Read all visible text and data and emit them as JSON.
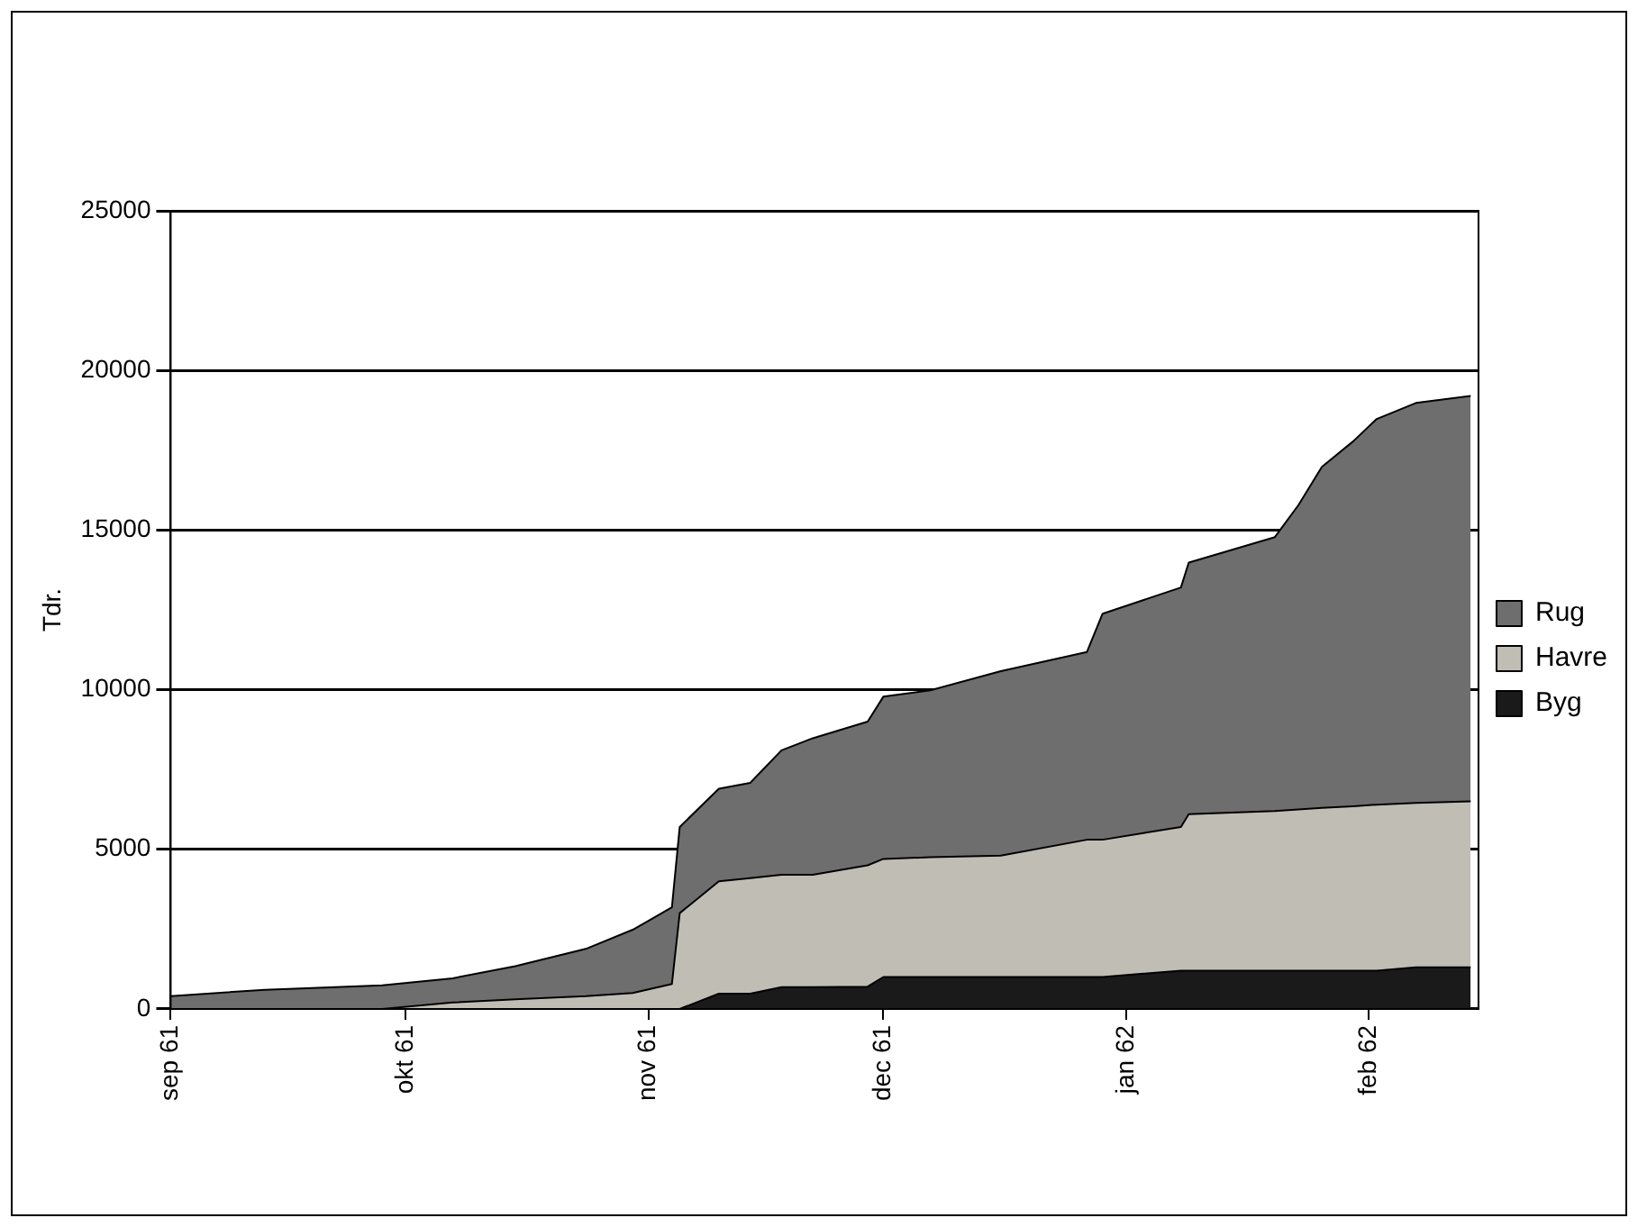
{
  "chart_data": {
    "type": "area",
    "stacked": true,
    "ylabel": "Tdr.",
    "x": [
      "1961-09-01",
      "1961-09-13",
      "1961-09-28",
      "1961-10-07",
      "1961-10-15",
      "1961-10-24",
      "1961-10-30",
      "1961-11-04",
      "1961-11-05",
      "1961-11-10",
      "1961-11-14",
      "1961-11-18",
      "1961-11-22",
      "1961-11-29",
      "1961-12-01",
      "1961-12-07",
      "1961-12-16",
      "1961-12-27",
      "1961-12-29",
      "1962-01-08",
      "1962-01-09",
      "1962-01-20",
      "1962-01-23",
      "1962-01-26",
      "1962-01-30",
      "1962-02-02",
      "1962-02-07",
      "1962-02-14"
    ],
    "series": [
      {
        "name": "Byg",
        "color": "#1a1a1a",
        "values": [
          0,
          0,
          0,
          0,
          0,
          0,
          0,
          0,
          0,
          480,
          480,
          680,
          680,
          700,
          1000,
          1000,
          1000,
          1000,
          1000,
          1200,
          1200,
          1200,
          1200,
          1200,
          1200,
          1200,
          1300,
          1300
        ]
      },
      {
        "name": "Havre",
        "color": "#c0bdb5",
        "values": [
          0,
          0,
          0,
          200,
          300,
          400,
          500,
          780,
          3000,
          3520,
          3620,
          3520,
          3520,
          3800,
          3700,
          3750,
          3800,
          4300,
          4300,
          4500,
          4900,
          5000,
          5050,
          5100,
          5150,
          5200,
          5150,
          5200
        ]
      },
      {
        "name": "Rug",
        "color": "#6e6e6e",
        "values": [
          400,
          600,
          740,
          760,
          1040,
          1480,
          1980,
          2400,
          2700,
          2900,
          2980,
          3900,
          4280,
          4500,
          5080,
          5230,
          5780,
          5880,
          7080,
          7500,
          7880,
          8580,
          9530,
          10680,
          11430,
          12080,
          12530,
          12700
        ]
      }
    ],
    "xlim": [
      "1961-09-01",
      "1962-02-15"
    ],
    "xticks": [
      {
        "value": "1961-09-01",
        "label": "sep 61"
      },
      {
        "value": "1961-10-01",
        "label": "okt 61"
      },
      {
        "value": "1961-11-01",
        "label": "nov 61"
      },
      {
        "value": "1961-12-01",
        "label": "dec 61"
      },
      {
        "value": "1962-01-01",
        "label": "jan 62"
      },
      {
        "value": "1962-02-01",
        "label": "feb 62"
      }
    ],
    "ylim": [
      0,
      25000
    ],
    "yticks": [
      0,
      5000,
      10000,
      15000,
      20000,
      25000
    ],
    "grid": "y",
    "legend": "right"
  }
}
